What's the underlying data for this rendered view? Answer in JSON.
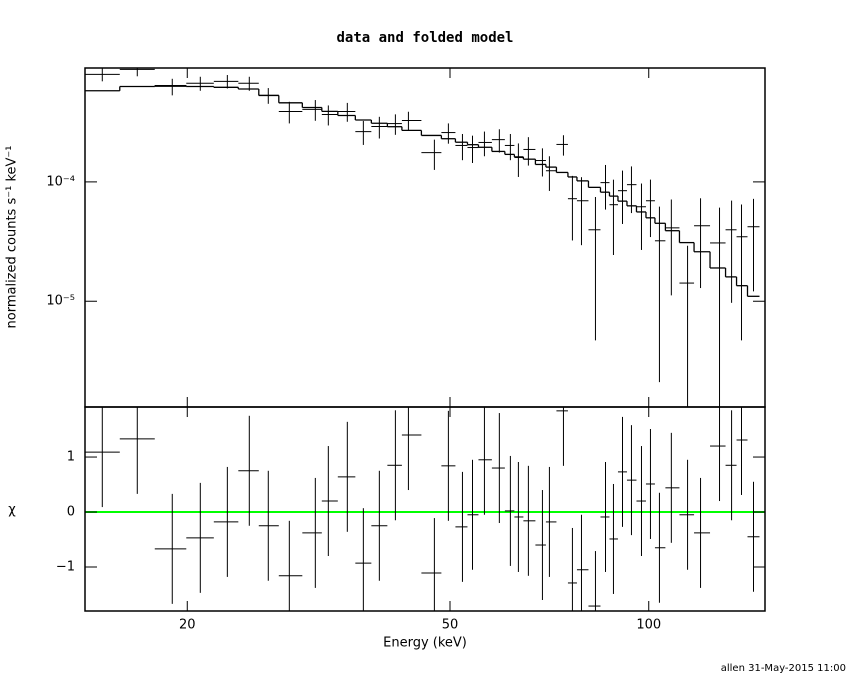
{
  "chart_data": [
    {
      "type": "errorbar",
      "title": "data and folded model",
      "ylabel": "normalized counts s⁻¹ keV⁻¹",
      "xscale": "log",
      "yscale": "log",
      "color": "#000000",
      "x": [
        14.87,
        16.8,
        18.98,
        20.93,
        23.0,
        24.83,
        26.53,
        28.55,
        31.26,
        32.71,
        34.95,
        36.96,
        39.08,
        41.33,
        43.25,
        47.35,
        49.72,
        52.22,
        54.08,
        56.38,
        59.39,
        61.72,
        63.47,
        65.72,
        69.02,
        70.72,
        74.27,
        76.63,
        79.09,
        83.04,
        86.0,
        88.42,
        91.25,
        94.15,
        97.5,
        100.6,
        103.8,
        108.2,
        114.5,
        119.8,
        128.0,
        133.5,
        138.2,
        144.1
      ],
      "values": [
        0.000796,
        0.000877,
        0.000631,
        0.00067,
        0.000696,
        0.00067,
        0.000531,
        0.000389,
        0.000405,
        0.000367,
        0.000389,
        0.000264,
        0.000291,
        0.000308,
        0.000327,
        0.000176,
        0.000259,
        0.000202,
        0.000194,
        0.000214,
        0.000226,
        0.000202,
        0.00016,
        0.000187,
        0.000151,
        0.000124,
        0.000206,
        7.23e-05,
        6.95e-05,
        3.97e-05,
        9.86e-05,
        6.44e-05,
        8.44e-05,
        9.48e-05,
        6.19e-05,
        6.95e-05,
        3.21e-05,
        4.12e-05,
        1.42e-05,
        4.29e-05,
        3.08e-05,
        3.97e-05,
        3.47e-05,
        4.21e-05
      ],
      "yerr": [
        0.0001,
        0.00011,
        0.0001,
        9e-05,
        9e-05,
        9e-05,
        8e-05,
        8e-05,
        8e-05,
        7e-05,
        7e-05,
        6e-05,
        6e-05,
        6e-05,
        6e-05,
        5e-05,
        5e-05,
        5e-05,
        5e-05,
        5e-05,
        5e-05,
        5e-05,
        5e-05,
        5e-05,
        4e-05,
        4e-05,
        4e-05,
        4e-05,
        4e-05,
        3.5e-05,
        4e-05,
        4e-05,
        4e-05,
        4e-05,
        3.5e-05,
        3.5e-05,
        3e-05,
        3e-05,
        1.5e-05,
        3e-05,
        3e-05,
        3e-05,
        3e-05,
        3e-05
      ],
      "model": [
        0.00058,
        0.00063,
        0.00064,
        0.00063,
        0.00062,
        0.0006,
        0.00053,
        0.00046,
        0.00042,
        0.00039,
        0.00036,
        0.00033,
        0.00031,
        0.00029,
        0.00027,
        0.000245,
        0.00023,
        0.000215,
        0.000205,
        0.000195,
        0.00018,
        0.00017,
        0.000162,
        0.000155,
        0.00014,
        0.000133,
        0.00012,
        0.00011,
        0.000102,
        9e-05,
        8.2e-05,
        7.6e-05,
        6.9e-05,
        6.3e-05,
        5.6e-05,
        5e-05,
        4.5e-05,
        3.9e-05,
        3.1e-05,
        2.6e-05,
        1.9e-05,
        1.6e-05,
        1.35e-05,
        1.1e-05
      ],
      "xlim": [
        14,
        150
      ],
      "ylim": [
        1.3e-06,
        0.0009
      ],
      "xticks": [
        20,
        50,
        100
      ],
      "yticks": [
        {
          "value": 0.0001,
          "label": "10⁻⁴"
        },
        {
          "value": 1e-05,
          "label": "10⁻⁵"
        }
      ]
    },
    {
      "type": "errorbar",
      "ylabel": "χ",
      "xlabel": "Energy (keV)",
      "xscale": "log",
      "color": "#000000",
      "x": [
        14.87,
        16.8,
        18.98,
        20.93,
        23.0,
        24.83,
        26.53,
        28.55,
        31.26,
        32.71,
        34.95,
        36.96,
        39.08,
        41.33,
        43.25,
        47.35,
        49.72,
        52.22,
        54.08,
        56.38,
        59.39,
        61.72,
        63.47,
        65.72,
        69.02,
        70.72,
        74.27,
        76.63,
        79.09,
        83.04,
        86.0,
        88.42,
        91.25,
        94.15,
        97.5,
        100.6,
        103.8,
        108.2,
        114.5,
        119.8,
        128.0,
        133.5,
        138.2,
        144.1
      ],
      "values": [
        1.09,
        1.33,
        -0.67,
        -0.47,
        -0.18,
        0.75,
        -0.25,
        -1.16,
        -0.38,
        0.2,
        0.64,
        -0.93,
        -0.25,
        0.85,
        1.4,
        -1.11,
        0.84,
        -0.27,
        -0.05,
        0.95,
        0.8,
        0.02,
        -0.09,
        -0.16,
        -0.6,
        -0.18,
        1.84,
        -1.29,
        -1.05,
        -1.71,
        -0.09,
        -0.49,
        0.73,
        0.58,
        0.2,
        0.51,
        -0.65,
        0.44,
        -0.05,
        -0.38,
        1.2,
        0.85,
        1.31,
        -0.45
      ],
      "yerr": [
        1,
        1,
        1,
        1,
        1,
        1,
        1,
        1,
        1,
        1,
        1,
        1,
        1,
        1,
        1,
        1,
        1,
        1,
        1,
        1,
        1,
        1,
        1,
        1,
        1,
        1,
        1,
        1,
        1,
        1,
        1,
        1,
        1,
        1,
        1,
        1,
        1,
        1,
        1,
        1,
        1,
        1,
        1,
        1
      ],
      "reference_line": {
        "value": 0,
        "color": "#00ff00"
      },
      "xlim": [
        14,
        150
      ],
      "ylim": [
        -1.8,
        1.91
      ],
      "xticks": [
        20,
        50,
        100
      ],
      "yticks": [
        {
          "value": -1,
          "label": "−1"
        },
        0,
        1
      ]
    }
  ],
  "footer": "allen 31-May-2015 11:00"
}
